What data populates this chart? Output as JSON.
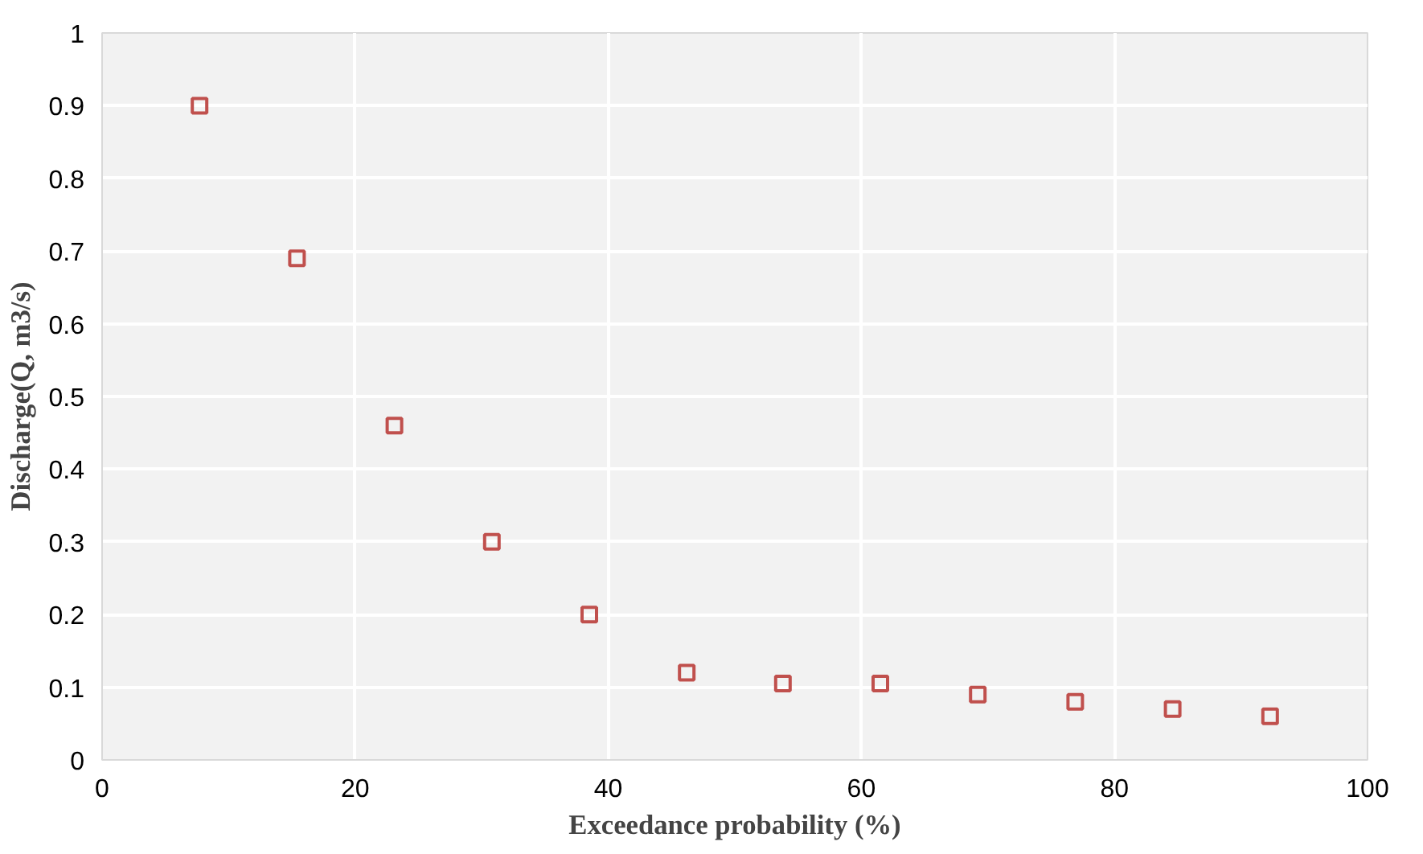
{
  "chart_data": {
    "type": "scatter",
    "xlabel": "Exceedance probability (%)",
    "ylabel": "Discharge(Q, m3/s)",
    "x": [
      7.7,
      15.4,
      23.1,
      30.8,
      38.5,
      46.2,
      53.8,
      61.5,
      69.2,
      76.9,
      84.6,
      92.3
    ],
    "series": [
      {
        "color": "#c0504d",
        "values": [
          0.9,
          0.69,
          0.46,
          0.3,
          0.2,
          0.12,
          0.105,
          0.105,
          0.09,
          0.08,
          0.07,
          0.06
        ]
      }
    ],
    "xlim": [
      0,
      100
    ],
    "xticks": [
      0,
      20,
      40,
      60,
      80,
      100
    ],
    "ylim": [
      0,
      1
    ],
    "yticks": [
      0,
      0.1,
      0.2,
      0.3,
      0.4,
      0.5,
      0.6,
      0.7,
      0.8,
      0.9,
      1
    ],
    "grid": true,
    "marker": "square"
  }
}
